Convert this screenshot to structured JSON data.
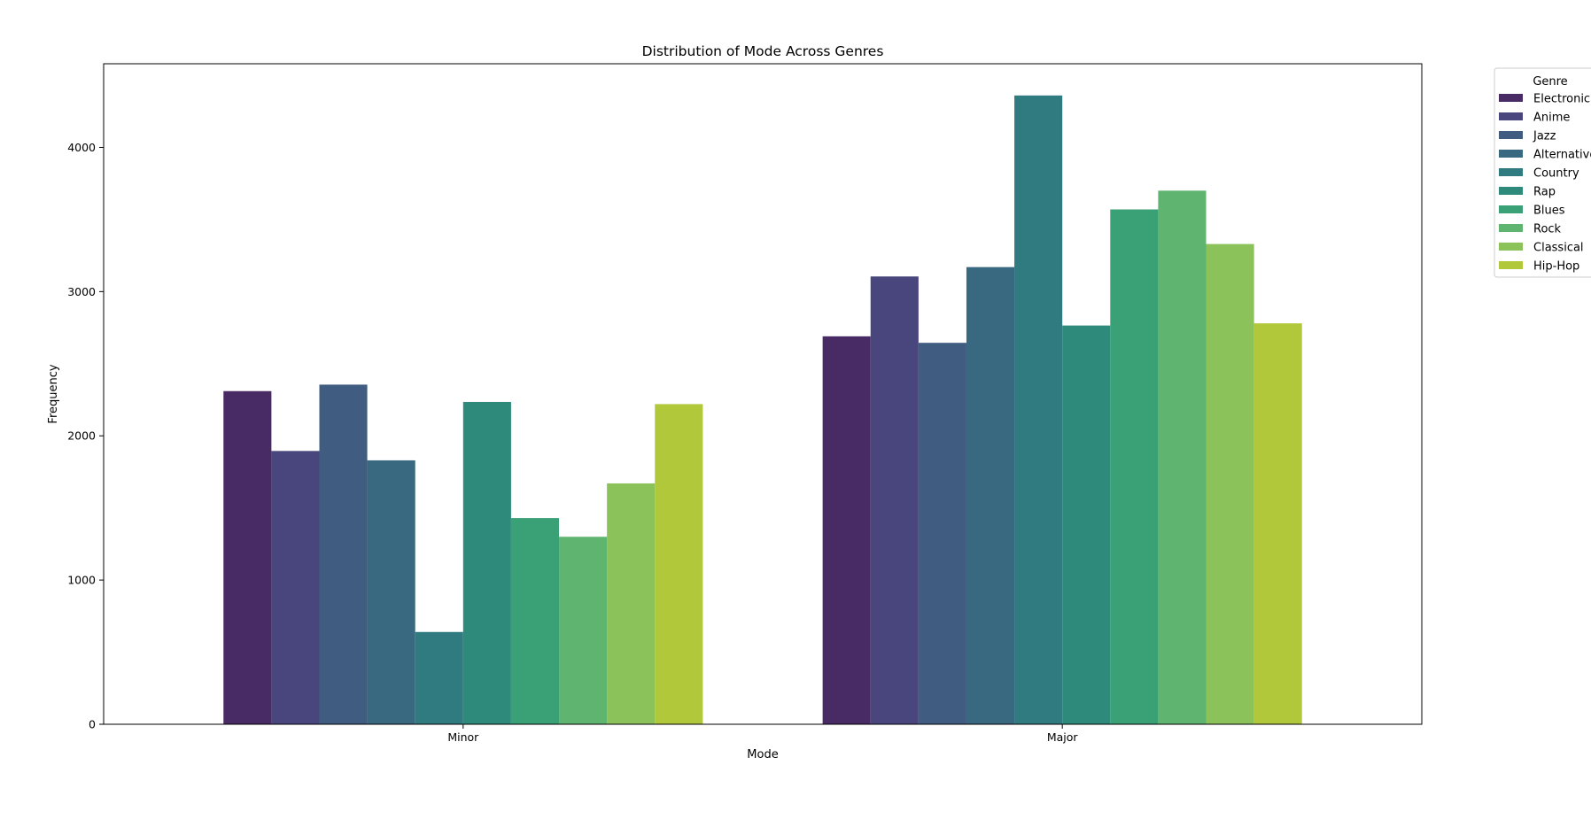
{
  "chart_data": {
    "type": "bar",
    "title": "Distribution of Mode Across Genres",
    "xlabel": "Mode",
    "ylabel": "Frequency",
    "categories": [
      "Minor",
      "Major"
    ],
    "ylim": [
      0,
      4580
    ],
    "yticks": [
      0,
      1000,
      2000,
      3000,
      4000
    ],
    "grid": false,
    "legend": {
      "title": "Genre",
      "placement": "outside-top-right",
      "entries": [
        "Electronic",
        "Anime",
        "Jazz",
        "Alternative",
        "Country",
        "Rap",
        "Blues",
        "Rock",
        "Classical",
        "Hip-Hop"
      ]
    },
    "series": [
      {
        "name": "Electronic",
        "color": "#482a64",
        "values": [
          2310,
          2690
        ]
      },
      {
        "name": "Anime",
        "color": "#48467c",
        "values": [
          1895,
          3105
        ]
      },
      {
        "name": "Jazz",
        "color": "#405c81",
        "values": [
          2355,
          2645
        ]
      },
      {
        "name": "Alternative",
        "color": "#386981",
        "values": [
          1830,
          3170
        ]
      },
      {
        "name": "Country",
        "color": "#307b80",
        "values": [
          640,
          4360
        ]
      },
      {
        "name": "Rap",
        "color": "#2e8b7c",
        "values": [
          2235,
          2765
        ]
      },
      {
        "name": "Blues",
        "color": "#3aa177",
        "values": [
          1430,
          3570
        ]
      },
      {
        "name": "Rock",
        "color": "#5fb56f",
        "values": [
          1300,
          3700
        ]
      },
      {
        "name": "Classical",
        "color": "#8bc25a",
        "values": [
          1670,
          3330
        ]
      },
      {
        "name": "Hip-Hop",
        "color": "#b2c83b",
        "values": [
          2220,
          2780
        ]
      }
    ]
  }
}
